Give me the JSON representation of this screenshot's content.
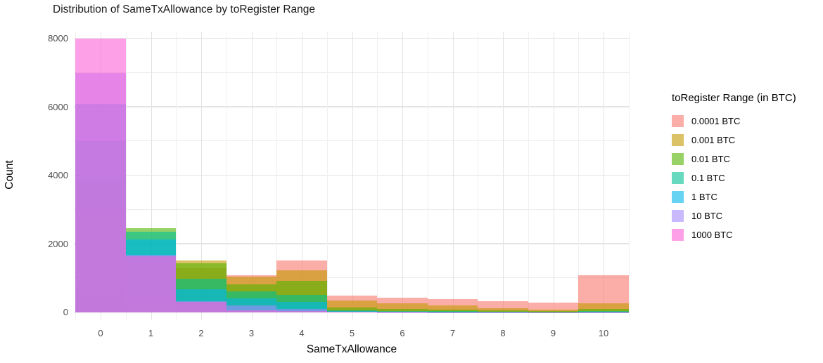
{
  "title": "Distribution of SameTxAllowance by toRegister Range",
  "chart_data": {
    "type": "histogram-overlay",
    "title": "Distribution of SameTxAllowance by toRegister Range",
    "xlabel": "SameTxAllowance",
    "ylabel": "Count",
    "legend_title": "toRegister Range (in BTC)",
    "legend_position": "right",
    "grid": "on",
    "alpha": 0.6,
    "xlim": [
      -0.55,
      10.55
    ],
    "ylim": [
      0,
      8200
    ],
    "xticks": [
      0,
      1,
      2,
      3,
      4,
      5,
      6,
      7,
      8,
      9,
      10
    ],
    "yticks": [
      0,
      2000,
      4000,
      6000,
      8000
    ],
    "x": [
      0,
      1,
      2,
      3,
      4,
      5,
      6,
      7,
      8,
      9,
      10
    ],
    "series": [
      {
        "name": "0.0001 BTC",
        "color": "#F8766D",
        "values": [
          700,
          200,
          1300,
          1090,
          1510,
          500,
          430,
          400,
          330,
          280,
          1090
        ]
      },
      {
        "name": "0.001 BTC",
        "color": "#C49A00",
        "values": [
          3000,
          400,
          1520,
          1050,
          1230,
          350,
          270,
          200,
          120,
          90,
          273
        ]
      },
      {
        "name": "0.01 BTC",
        "color": "#53B400",
        "values": [
          3900,
          2460,
          1440,
          820,
          920,
          140,
          110,
          80,
          60,
          45,
          100
        ]
      },
      {
        "name": "0.1 BTC",
        "color": "#00C094",
        "values": [
          5000,
          2350,
          990,
          615,
          510,
          70,
          50,
          35,
          25,
          15,
          40
        ]
      },
      {
        "name": "1 BTC",
        "color": "#00B6EB",
        "values": [
          6100,
          2140,
          680,
          410,
          310,
          40,
          30,
          20,
          15,
          8,
          20
        ]
      },
      {
        "name": "10 BTC",
        "color": "#A58AFF",
        "values": [
          7000,
          1690,
          320,
          205,
          100,
          25,
          15,
          10,
          8,
          5,
          10
        ]
      },
      {
        "name": "1000 BTC",
        "color": "#FB61D7",
        "values": [
          8000,
          1650,
          300,
          60,
          50,
          15,
          10,
          8,
          5,
          3,
          5
        ]
      }
    ]
  }
}
